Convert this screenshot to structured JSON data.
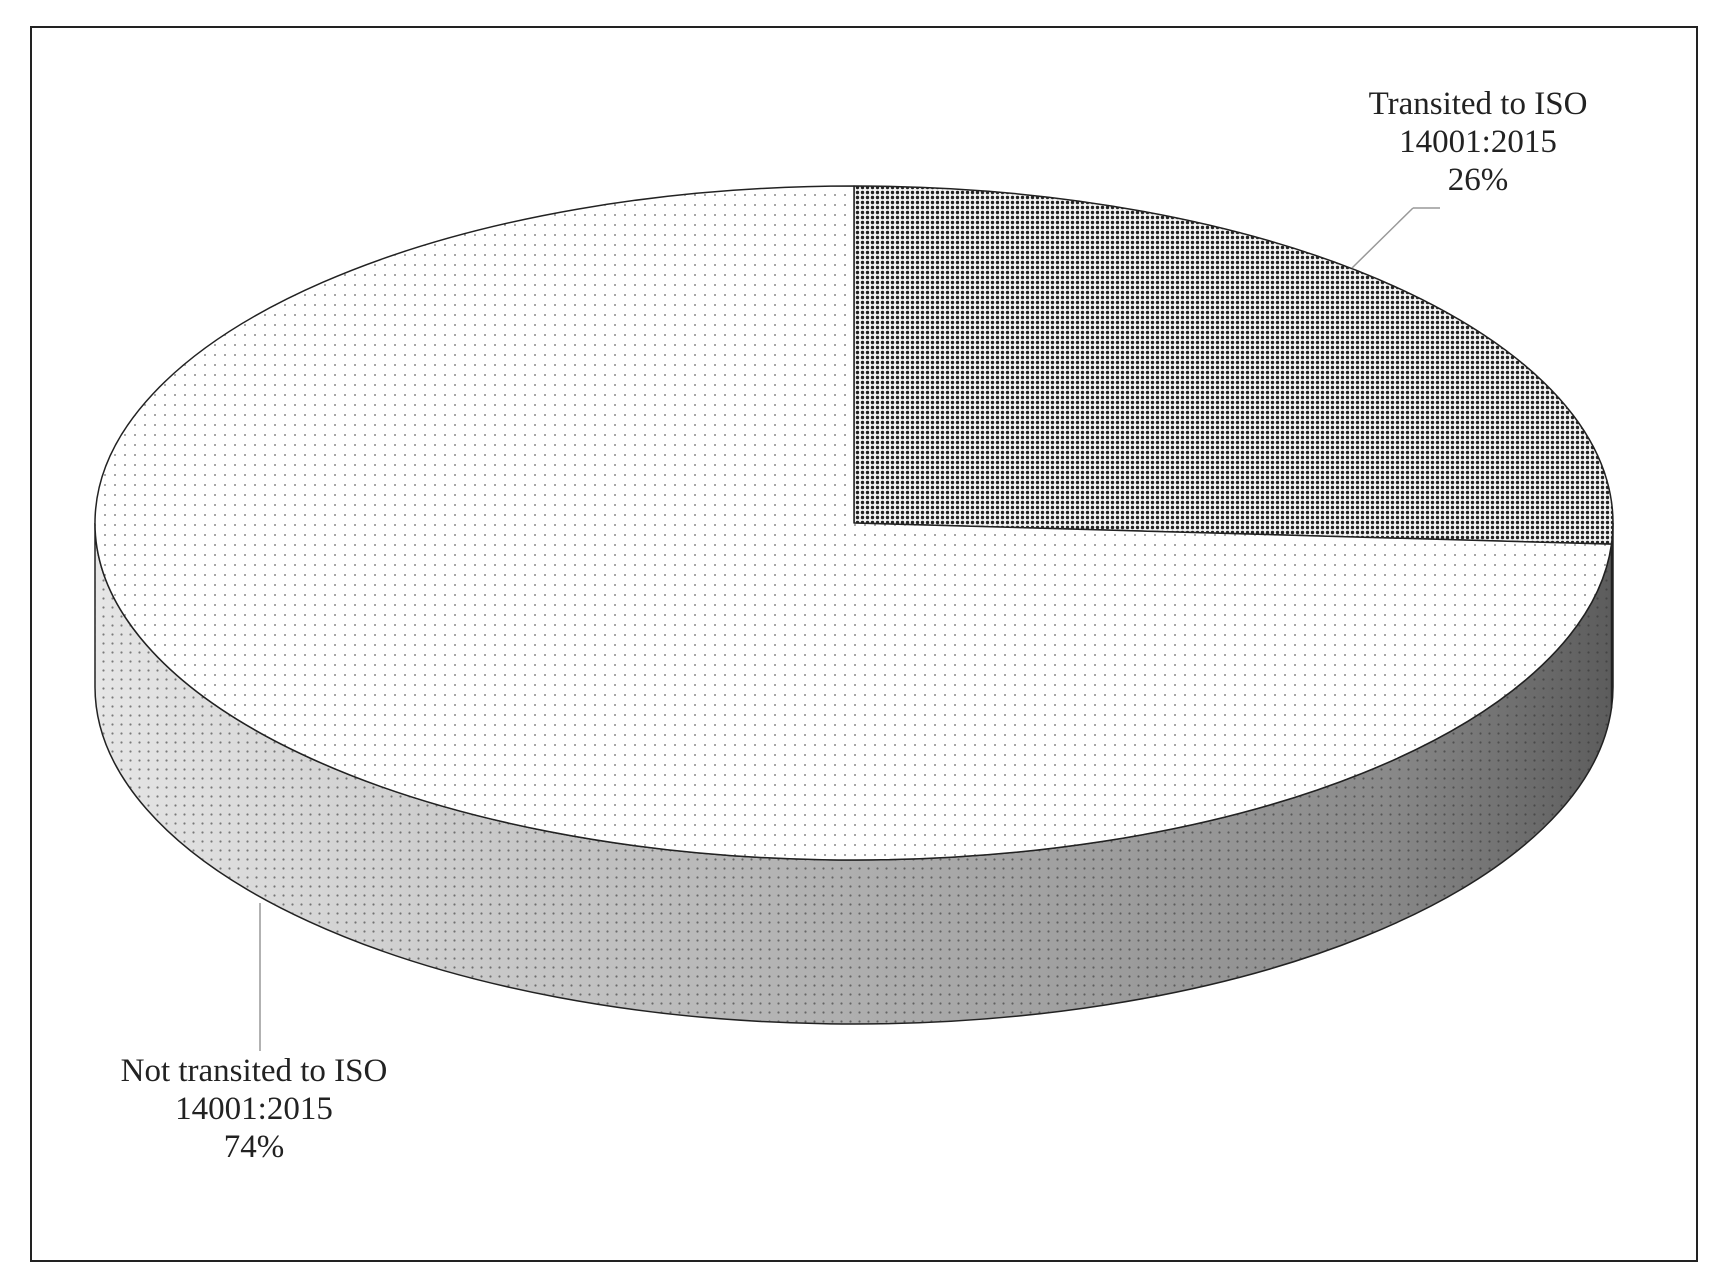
{
  "chart_data": {
    "type": "pie",
    "categories": [
      "Transited to ISO 14001:2015",
      "Not transited to ISO 14001:2015"
    ],
    "values": [
      26,
      74
    ],
    "value_labels": [
      "26%",
      "74%"
    ],
    "colors": [
      "#5a5a5a",
      "#ffffff"
    ]
  }
}
